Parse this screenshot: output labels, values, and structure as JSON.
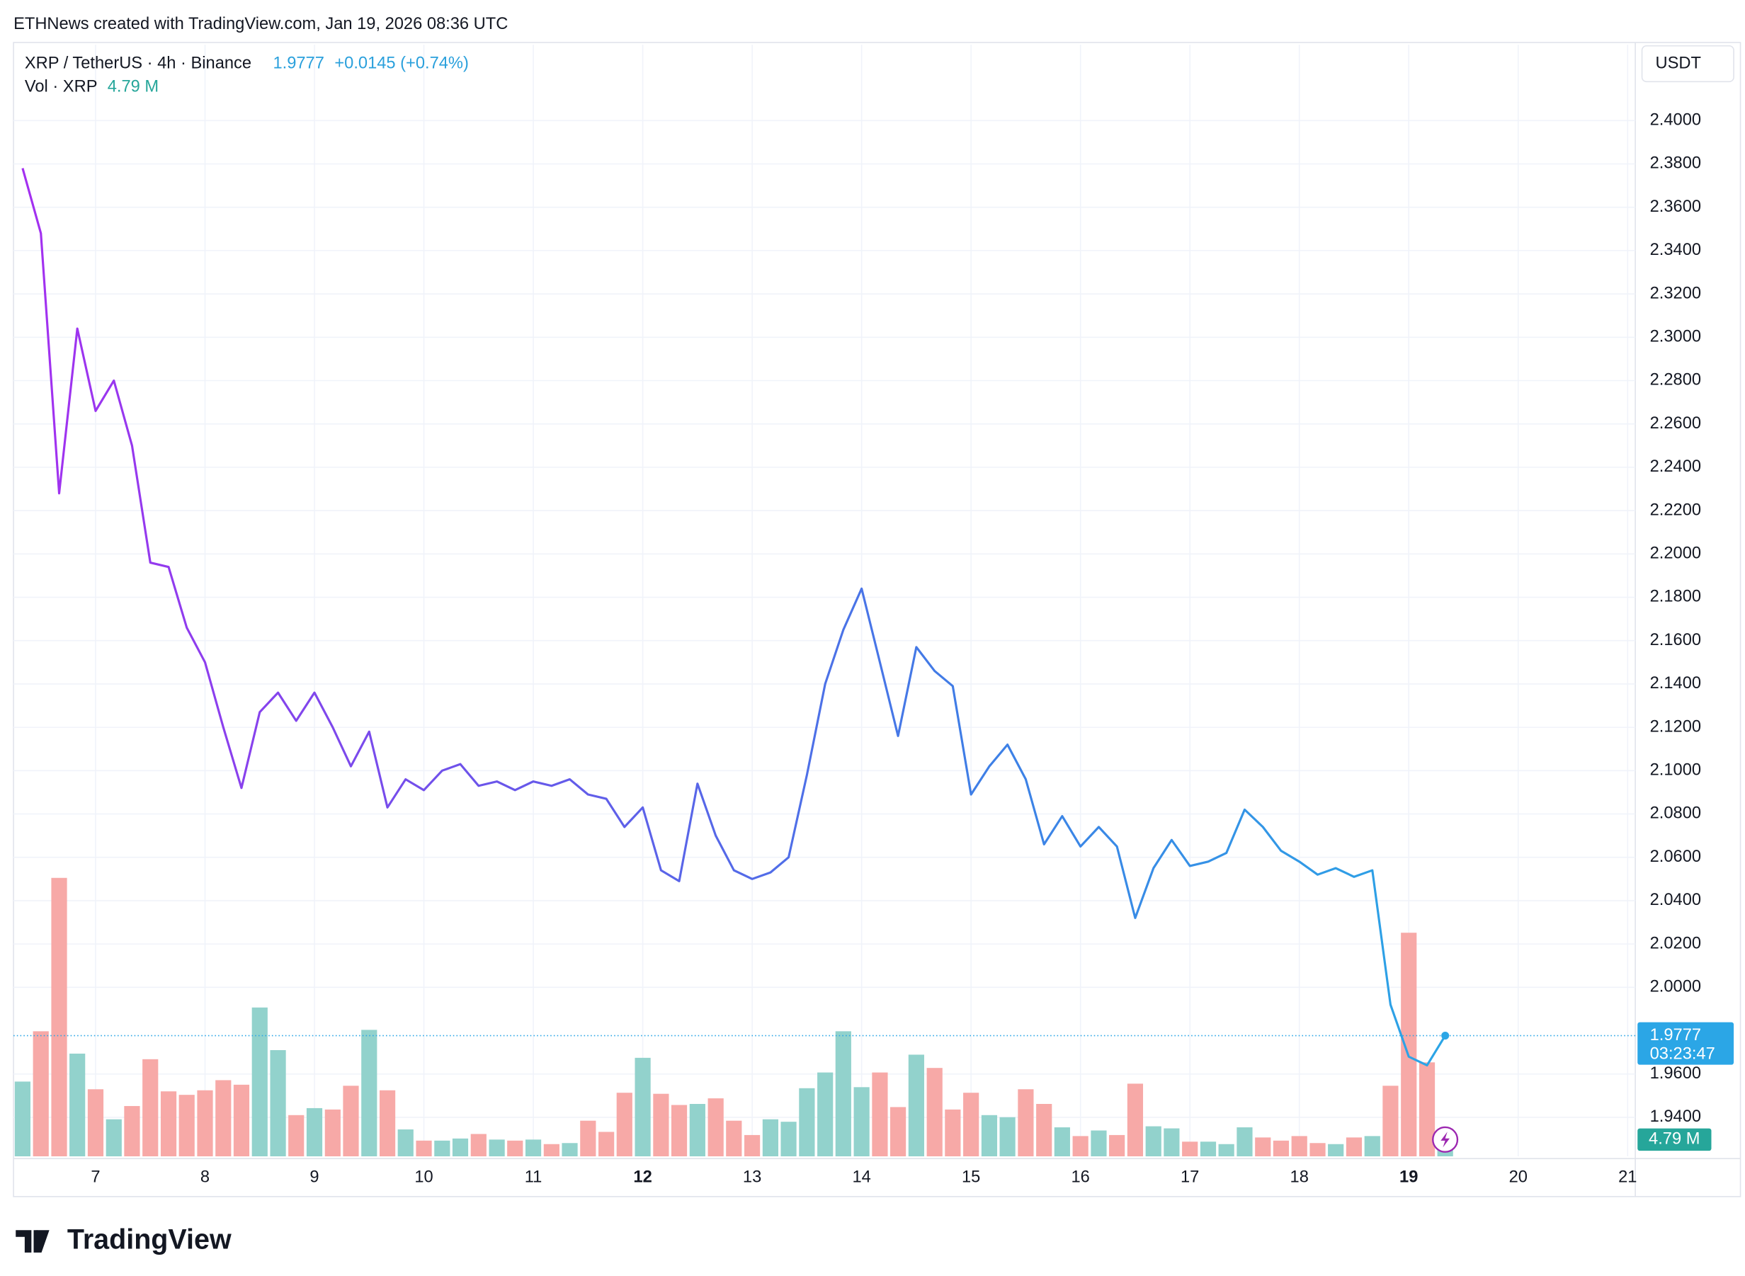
{
  "header": {
    "credit": "ETHNews created with TradingView.com, Jan 19, 2026 08:36 UTC",
    "symbol": "XRP / TetherUS · 4h · Binance",
    "last": "1.9777",
    "change": "+0.0145 (+0.74%)",
    "vol_label": "Vol · XRP",
    "vol_value": "4.79 M",
    "currency": "USDT",
    "countdown": "03:23:47",
    "logo": "TradingView"
  },
  "chart_data": {
    "type": "line",
    "xlim": [
      6.25,
      21.07
    ],
    "ylim": [
      1.922,
      2.435
    ],
    "xticks": [
      7,
      8,
      9,
      10,
      11,
      12,
      13,
      14,
      15,
      16,
      17,
      18,
      19,
      20,
      21
    ],
    "xticks_bold": [
      12,
      19
    ],
    "yticks": [
      {
        "value": 2.4,
        "label": "2.4000"
      },
      {
        "value": 2.38,
        "label": "2.3800"
      },
      {
        "value": 2.36,
        "label": "2.3600"
      },
      {
        "value": 2.34,
        "label": "2.3400"
      },
      {
        "value": 2.32,
        "label": "2.3200"
      },
      {
        "value": 2.3,
        "label": "2.3000"
      },
      {
        "value": 2.28,
        "label": "2.2800"
      },
      {
        "value": 2.26,
        "label": "2.2600"
      },
      {
        "value": 2.24,
        "label": "2.2400"
      },
      {
        "value": 2.22,
        "label": "2.2200"
      },
      {
        "value": 2.2,
        "label": "2.2000"
      },
      {
        "value": 2.18,
        "label": "2.1800"
      },
      {
        "value": 2.16,
        "label": "2.1600"
      },
      {
        "value": 2.14,
        "label": "2.1400"
      },
      {
        "value": 2.12,
        "label": "2.1200"
      },
      {
        "value": 2.1,
        "label": "2.1000"
      },
      {
        "value": 2.08,
        "label": "2.0800"
      },
      {
        "value": 2.06,
        "label": "2.0600"
      },
      {
        "value": 2.04,
        "label": "2.0400"
      },
      {
        "value": 2.02,
        "label": "2.0200"
      },
      {
        "value": 2.0,
        "label": "2.0000"
      },
      {
        "value": 1.96,
        "label": "1.9600"
      },
      {
        "value": 1.94,
        "label": "1.9400"
      }
    ],
    "x": [
      6.333,
      6.5,
      6.667,
      6.833,
      7,
      7.167,
      7.333,
      7.5,
      7.667,
      7.833,
      8,
      8.167,
      8.333,
      8.5,
      8.667,
      8.833,
      9,
      9.167,
      9.333,
      9.5,
      9.667,
      9.833,
      10,
      10.167,
      10.333,
      10.5,
      10.667,
      10.833,
      11,
      11.167,
      11.333,
      11.5,
      11.667,
      11.833,
      12,
      12.167,
      12.333,
      12.5,
      12.667,
      12.833,
      13,
      13.167,
      13.333,
      13.5,
      13.667,
      13.833,
      14,
      14.167,
      14.333,
      14.5,
      14.667,
      14.833,
      15,
      15.167,
      15.333,
      15.5,
      15.667,
      15.833,
      16,
      16.167,
      16.333,
      16.5,
      16.667,
      16.833,
      17,
      17.167,
      17.333,
      17.5,
      17.667,
      17.833,
      18,
      18.167,
      18.333,
      18.5,
      18.667,
      18.833,
      19,
      19.167,
      19.333
    ],
    "series": [
      {
        "name": "XRP / TetherUS",
        "colors": [
          "#a52ff0",
          "#6a55ea",
          "#3f7ee6",
          "#2ba6e6"
        ],
        "values": [
          2.378,
          2.348,
          2.228,
          2.304,
          2.266,
          2.28,
          2.25,
          2.196,
          2.194,
          2.166,
          2.15,
          2.12,
          2.092,
          2.127,
          2.136,
          2.123,
          2.136,
          2.12,
          2.102,
          2.118,
          2.083,
          2.096,
          2.091,
          2.1,
          2.103,
          2.093,
          2.095,
          2.091,
          2.095,
          2.093,
          2.096,
          2.089,
          2.087,
          2.074,
          2.083,
          2.054,
          2.049,
          2.094,
          2.07,
          2.054,
          2.05,
          2.053,
          2.06,
          2.098,
          2.14,
          2.165,
          2.184,
          2.15,
          2.116,
          2.157,
          2.146,
          2.139,
          2.089,
          2.102,
          2.112,
          2.096,
          2.066,
          2.079,
          2.065,
          2.074,
          2.065,
          2.032,
          2.055,
          2.068,
          2.056,
          2.058,
          2.062,
          2.082,
          2.074,
          2.063,
          2.058,
          2.052,
          2.055,
          2.051,
          2.054,
          1.992,
          1.968,
          1.964,
          1.9777
        ]
      },
      {
        "name": "Vol",
        "type": "bar",
        "up_color": "#92d2cc",
        "down_color": "#f7a9a7",
        "values": [
          21.4,
          35.8,
          79.7,
          29.4,
          19.2,
          10.6,
          14.4,
          27.8,
          18.6,
          17.6,
          18.9,
          21.8,
          20.5,
          42.6,
          30.4,
          11.8,
          13.8,
          13.4,
          20.2,
          36.2,
          18.9,
          7.7,
          4.5,
          4.5,
          5.1,
          6.4,
          4.8,
          4.5,
          4.8,
          3.5,
          3.8,
          10.2,
          7.0,
          18.2,
          28.2,
          17.9,
          14.7,
          15.0,
          16.6,
          10.2,
          6.1,
          10.6,
          9.9,
          19.5,
          24.0,
          35.8,
          19.8,
          24.0,
          14.1,
          29.1,
          25.3,
          13.4,
          18.2,
          11.8,
          11.2,
          19.2,
          15.0,
          8.3,
          5.8,
          7.4,
          6.1,
          20.8,
          8.6,
          8.0,
          4.2,
          4.2,
          3.5,
          8.3,
          5.4,
          4.5,
          5.8,
          3.8,
          3.5,
          5.4,
          5.8,
          20.2,
          64.0,
          26.9,
          4.79
        ]
      }
    ]
  }
}
